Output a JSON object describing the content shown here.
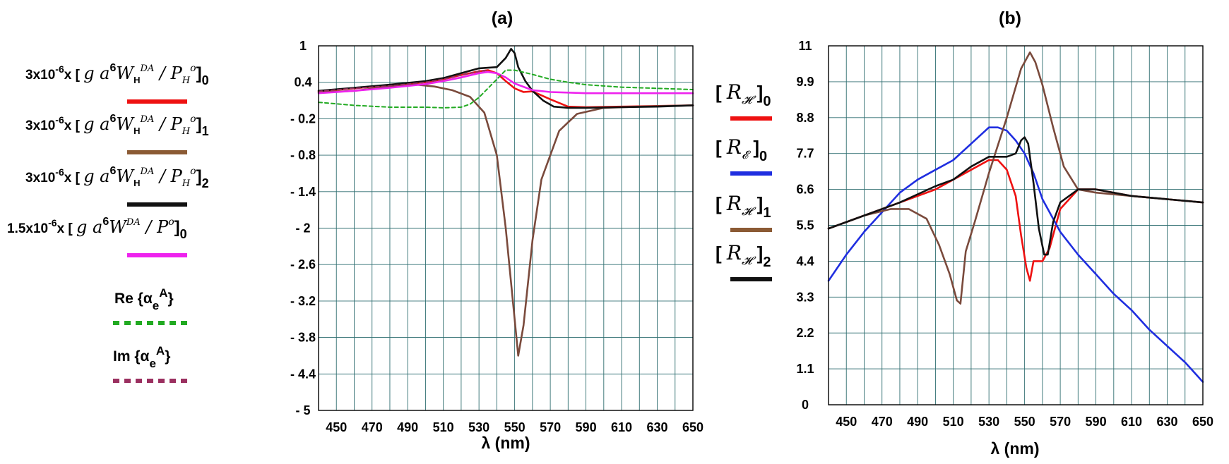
{
  "chart_data": [
    {
      "type": "line",
      "title": "(a)",
      "xlabel": "λ (nm)",
      "ylabel": "",
      "xlim": [
        440,
        650
      ],
      "ylim": [
        -5,
        1
      ],
      "x_ticks": [
        450,
        470,
        490,
        510,
        530,
        550,
        570,
        590,
        610,
        630,
        650
      ],
      "y_ticks": [
        1,
        0.4,
        -0.2,
        -0.8,
        -1.4,
        -2,
        -2.6,
        -3.2,
        -3.8,
        -4.4,
        -5
      ],
      "y_tick_labels": [
        "1",
        "0.4",
        "- 0.2",
        "- 0.8",
        "- 1.4",
        "- 2",
        "- 2.6",
        "- 3.2",
        "- 3.8",
        "- 4.4",
        "- 5"
      ],
      "legend": [
        {
          "key": "red",
          "coef": "3x10",
          "exp": "-6",
          "suffix": "x",
          "sub_h": "H",
          "sup_da": "DA",
          "sub_ph": "H",
          "sup_o": "o",
          "index": "0",
          "color": "#ee1111",
          "dash": false
        },
        {
          "key": "brown",
          "coef": "3x10",
          "exp": "-6",
          "suffix": "x",
          "sub_h": "H",
          "sup_da": "DA",
          "sub_ph": "H",
          "sup_o": "o",
          "index": "1",
          "color": "#8b5a34",
          "dash": false
        },
        {
          "key": "black",
          "coef": "3x10",
          "exp": "-6",
          "suffix": "x",
          "sub_h": "H",
          "sup_da": "DA",
          "sub_ph": "H",
          "sup_o": "o",
          "index": "2",
          "color": "#111111",
          "dash": false
        },
        {
          "key": "magenta",
          "coef": "1.5x10",
          "exp": "-6",
          "suffix": "x",
          "sub_h": "",
          "sup_da": "DA",
          "sub_ph": "",
          "sup_o": "o",
          "index": "0",
          "color": "#ee22ee",
          "dash": false
        },
        {
          "key": "re",
          "label": "Re {α",
          "sub": "e",
          "sup": "A",
          "close": "}",
          "color": "#22aa22",
          "dash": true
        },
        {
          "key": "im",
          "label": "Im {α",
          "sub": "e",
          "sup": "A",
          "close": "}",
          "color": "#9b3060",
          "dash": true
        }
      ],
      "series": [
        {
          "name": "3x10^-6 x [g a^6 W_H^DA / P_H^o]_0",
          "color": "#ee1111",
          "dash": false,
          "x": [
            440,
            460,
            480,
            500,
            510,
            520,
            530,
            535,
            540,
            545,
            550,
            555,
            560,
            570,
            580,
            590,
            610,
            630,
            650
          ],
          "y": [
            0.25,
            0.3,
            0.35,
            0.4,
            0.45,
            0.52,
            0.58,
            0.6,
            0.55,
            0.42,
            0.3,
            0.24,
            0.25,
            0.12,
            0.0,
            -0.01,
            0.0,
            0.01,
            0.02
          ]
        },
        {
          "name": "3x10^-6 x [g a^6 W_H^DA / P_H^o]_1",
          "color": "#7a4a3c",
          "dash": false,
          "x": [
            440,
            460,
            480,
            495,
            505,
            515,
            525,
            533,
            540,
            545,
            549,
            552,
            555,
            560,
            565,
            575,
            585,
            600,
            620,
            650
          ],
          "y": [
            0.23,
            0.26,
            0.33,
            0.36,
            0.33,
            0.27,
            0.16,
            -0.1,
            -0.8,
            -2.0,
            -3.2,
            -4.1,
            -3.6,
            -2.2,
            -1.2,
            -0.4,
            -0.12,
            -0.02,
            0.0,
            0.02
          ]
        },
        {
          "name": "3x10^-6 x [g a^6 W_H^DA / P_H^o]_2",
          "color": "#111111",
          "dash": false,
          "x": [
            440,
            460,
            480,
            500,
            510,
            520,
            530,
            540,
            545,
            548,
            550,
            552,
            556,
            560,
            566,
            572,
            580,
            590,
            610,
            630,
            650
          ],
          "y": [
            0.26,
            0.31,
            0.36,
            0.42,
            0.47,
            0.55,
            0.63,
            0.65,
            0.8,
            0.95,
            0.88,
            0.65,
            0.42,
            0.26,
            0.1,
            0.0,
            -0.02,
            -0.02,
            -0.01,
            0.0,
            0.02
          ]
        },
        {
          "name": "1.5x10^-6 x [g a^6 W^DA / P^o]_0",
          "color": "#ee22ee",
          "dash": false,
          "x": [
            440,
            460,
            480,
            500,
            510,
            520,
            530,
            535,
            540,
            545,
            550,
            560,
            570,
            580,
            590,
            610,
            630,
            650
          ],
          "y": [
            0.22,
            0.26,
            0.31,
            0.37,
            0.42,
            0.48,
            0.55,
            0.57,
            0.55,
            0.48,
            0.38,
            0.27,
            0.24,
            0.23,
            0.22,
            0.22,
            0.22,
            0.22
          ]
        },
        {
          "name": "Re {α_e^A}",
          "color": "#22aa22",
          "dash": true,
          "x": [
            440,
            460,
            480,
            500,
            510,
            520,
            525,
            530,
            535,
            540,
            545,
            550,
            560,
            570,
            580,
            590,
            610,
            630,
            650
          ],
          "y": [
            0.07,
            0.02,
            -0.01,
            -0.01,
            -0.02,
            -0.01,
            0.04,
            0.15,
            0.3,
            0.45,
            0.6,
            0.6,
            0.53,
            0.45,
            0.4,
            0.36,
            0.32,
            0.3,
            0.28
          ]
        },
        {
          "name": "Im {α_e^A}",
          "color": "#9b3060",
          "dash": true,
          "x": [
            440,
            460,
            480,
            500,
            510,
            520,
            530,
            535
          ],
          "y": [
            0.25,
            0.3,
            0.34,
            0.4,
            0.45,
            0.52,
            0.58,
            0.6
          ]
        }
      ]
    },
    {
      "type": "line",
      "title": "(b)",
      "xlabel": "λ (nm)",
      "ylabel": "",
      "xlim": [
        440,
        650
      ],
      "ylim": [
        0,
        11
      ],
      "x_ticks": [
        450,
        470,
        490,
        510,
        530,
        550,
        570,
        590,
        610,
        630,
        650
      ],
      "y_ticks": [
        0,
        1.1,
        2.2,
        3.3,
        4.4,
        5.5,
        6.6,
        7.7,
        8.8,
        9.9,
        11
      ],
      "y_tick_labels": [
        "0",
        "1.1",
        "2.2",
        "3.3",
        "4.4",
        "5.5",
        "6.6",
        "7.7",
        "8.8",
        "9.9",
        "11"
      ],
      "legend": [
        {
          "key": "r0",
          "open": "[",
          "sym": "R",
          "sub_sym": "𝓗",
          "close": "]",
          "index": "0",
          "color": "#ee1111"
        },
        {
          "key": "e0",
          "open": "[",
          "sym": "R",
          "sub_sym": "𝓔",
          "close": "]",
          "index": "0",
          "color": "#1f2ee0"
        },
        {
          "key": "r1",
          "open": "[",
          "sym": "R",
          "sub_sym": "𝓗",
          "close": "]",
          "index": "1",
          "color": "#8b5a34"
        },
        {
          "key": "r2",
          "open": "[",
          "sym": "R",
          "sub_sym": "𝓗",
          "close": "]",
          "index": "2",
          "color": "#111111"
        }
      ],
      "series": [
        {
          "name": "[R_H]_0",
          "color": "#ee1111",
          "dash": false,
          "x": [
            440,
            460,
            480,
            490,
            500,
            510,
            520,
            530,
            535,
            540,
            545,
            548,
            551,
            553,
            555,
            560,
            564,
            570,
            580,
            590,
            610,
            630,
            650
          ],
          "y": [
            5.4,
            5.8,
            6.2,
            6.4,
            6.6,
            6.9,
            7.2,
            7.5,
            7.5,
            7.2,
            6.4,
            5.2,
            4.2,
            3.8,
            4.4,
            4.4,
            4.8,
            6.0,
            6.6,
            6.6,
            6.4,
            6.3,
            6.2
          ]
        },
        {
          "name": "[R_E]_0",
          "color": "#1f2ee0",
          "dash": false,
          "x": [
            440,
            450,
            460,
            470,
            480,
            490,
            500,
            510,
            520,
            530,
            535,
            540,
            545,
            550,
            555,
            560,
            570,
            580,
            590,
            600,
            610,
            620,
            630,
            640,
            650
          ],
          "y": [
            3.8,
            4.6,
            5.3,
            5.9,
            6.5,
            6.9,
            7.2,
            7.5,
            8.0,
            8.5,
            8.5,
            8.4,
            8.1,
            7.7,
            7.1,
            6.3,
            5.3,
            4.6,
            4.0,
            3.4,
            2.9,
            2.3,
            1.8,
            1.3,
            0.7
          ]
        },
        {
          "name": "[R_H]_1",
          "color": "#7a4a3c",
          "dash": false,
          "x": [
            440,
            460,
            475,
            485,
            495,
            502,
            508,
            512,
            514,
            517,
            522,
            530,
            540,
            548,
            553,
            556,
            560,
            566,
            572,
            580,
            590,
            610,
            630,
            650
          ],
          "y": [
            5.4,
            5.8,
            6.0,
            6.0,
            5.7,
            4.9,
            4.0,
            3.2,
            3.1,
            4.7,
            5.6,
            7.1,
            8.8,
            10.3,
            10.8,
            10.5,
            9.8,
            8.5,
            7.3,
            6.6,
            6.5,
            6.4,
            6.3,
            6.2
          ]
        },
        {
          "name": "[R_H]_2",
          "color": "#111111",
          "dash": false,
          "x": [
            440,
            460,
            480,
            500,
            510,
            520,
            530,
            540,
            545,
            548,
            550,
            552,
            555,
            558,
            561,
            563,
            566,
            570,
            580,
            590,
            610,
            630,
            650
          ],
          "y": [
            5.4,
            5.8,
            6.2,
            6.7,
            6.9,
            7.3,
            7.6,
            7.6,
            7.7,
            8.1,
            8.2,
            8.0,
            6.8,
            5.4,
            4.6,
            4.6,
            5.6,
            6.2,
            6.6,
            6.6,
            6.4,
            6.3,
            6.2
          ]
        }
      ]
    }
  ]
}
